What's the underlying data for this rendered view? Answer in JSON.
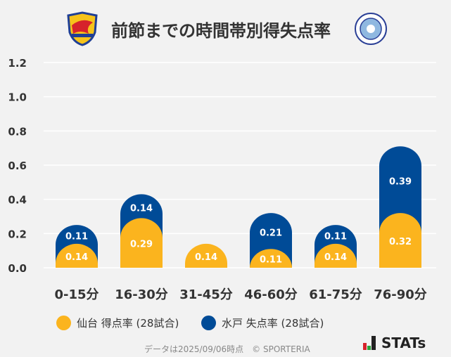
{
  "title": "前節までの時間帯別得失点率",
  "logos": {
    "left": "VEGALTA",
    "right": "FC MITO HOLLY HOCK"
  },
  "colors": {
    "sendai": "#fbb41e",
    "mito": "#004b97",
    "grid": "#ffffff",
    "text": "#333333"
  },
  "chart_data": {
    "type": "bar",
    "stacked": true,
    "categories": [
      "0-15分",
      "16-30分",
      "31-45分",
      "46-60分",
      "61-75分",
      "76-90分"
    ],
    "series": [
      {
        "name": "仙台 得点率 (28試合)",
        "values": [
          0.14,
          0.29,
          0.14,
          0.11,
          0.14,
          0.32
        ]
      },
      {
        "name": "水戸 失点率 (28試合)",
        "values": [
          0.11,
          0.14,
          0,
          0.21,
          0.11,
          0.39
        ]
      }
    ],
    "ylim": [
      0,
      1.2
    ],
    "yticks": [
      "0.0",
      "0.2",
      "0.4",
      "0.6",
      "0.8",
      "1.0",
      "1.2"
    ],
    "grid": true,
    "legend_position": "bottom-left"
  },
  "footer": "データは2025/09/06時点　© SPORTERIA",
  "brand": "STATs"
}
